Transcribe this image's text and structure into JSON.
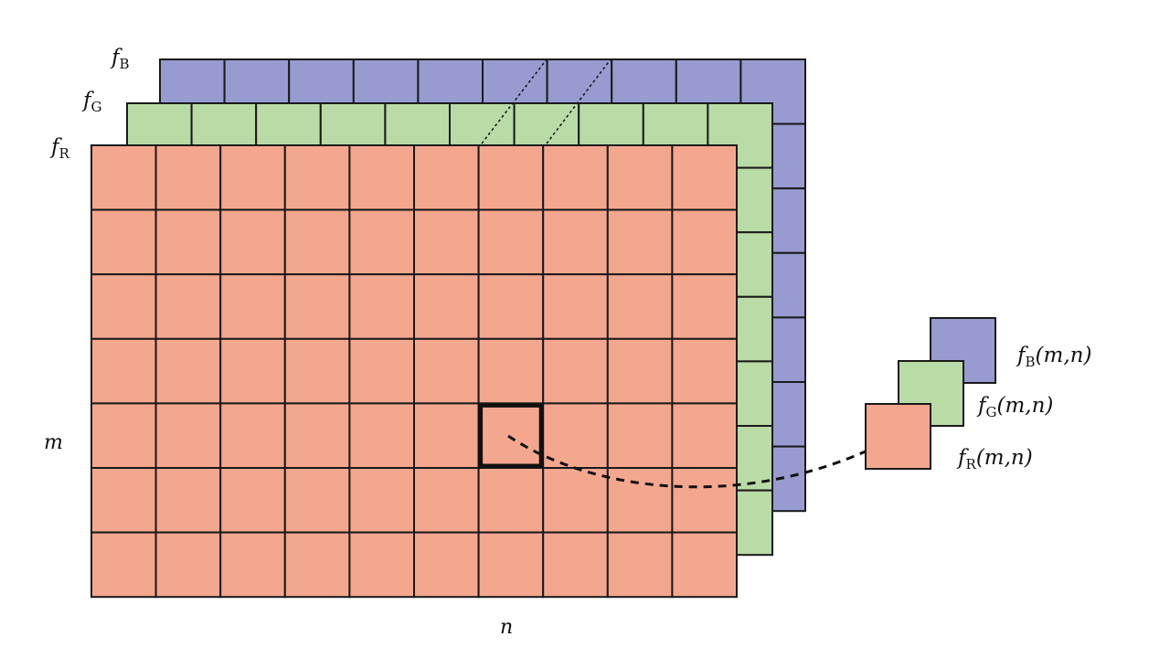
{
  "channels": [
    {
      "id": "B",
      "color": "#979bcf",
      "layer_label": {
        "var": "f",
        "sub": "B"
      },
      "pixel_label": {
        "var": "f",
        "sub": "B",
        "args": "(m,n)"
      }
    },
    {
      "id": "G",
      "color": "#b9dba5",
      "layer_label": {
        "var": "f",
        "sub": "G"
      },
      "pixel_label": {
        "var": "f",
        "sub": "G",
        "args": "(m,n)"
      }
    },
    {
      "id": "R",
      "color": "#f4a78f",
      "layer_label": {
        "var": "f",
        "sub": "R"
      },
      "pixel_label": {
        "var": "f",
        "sub": "R",
        "args": "(m,n)"
      }
    }
  ],
  "grid": {
    "rows": 7,
    "cols": 10,
    "highlight_row": 4,
    "highlight_col": 6
  },
  "axes": {
    "row_label": "m",
    "col_label": "n"
  }
}
